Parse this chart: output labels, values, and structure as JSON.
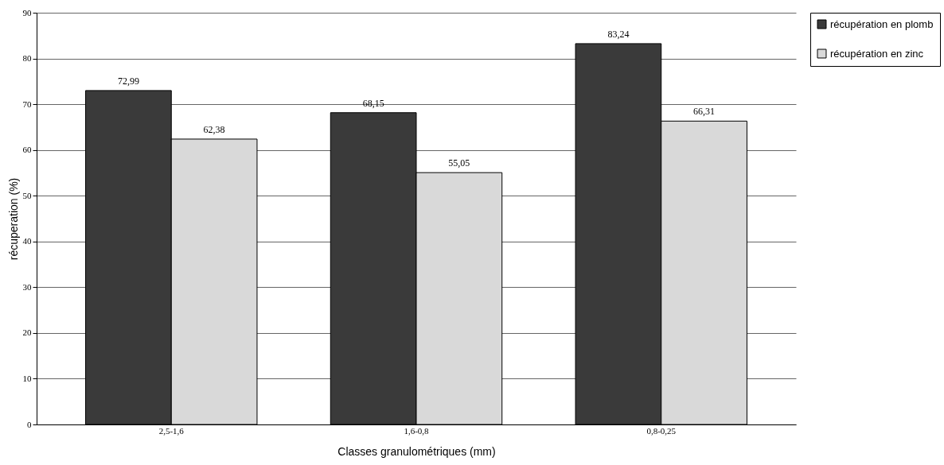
{
  "chart_data": {
    "type": "bar",
    "xlabel": "Classes granulométriques (mm)",
    "ylabel": "récuperation (%)",
    "categories": [
      "2,5-1,6",
      "1,6-0,8",
      "0,8-0,25"
    ],
    "series": [
      {
        "name": "récupération en plomb",
        "color": "#3a3a3a",
        "values": [
          72.99,
          68.15,
          83.24
        ],
        "value_labels": [
          "72,99",
          "68,15",
          "83,24"
        ]
      },
      {
        "name": "récupération en zinc",
        "color": "#d9d9d9",
        "values": [
          62.38,
          55.05,
          66.31
        ],
        "value_labels": [
          "62,38",
          "55,05",
          "66,31"
        ]
      }
    ],
    "ylim": [
      0,
      90
    ],
    "yticks": [
      0,
      10,
      20,
      30,
      40,
      50,
      60,
      70,
      80,
      90
    ],
    "grid": "y",
    "legend": "right"
  }
}
